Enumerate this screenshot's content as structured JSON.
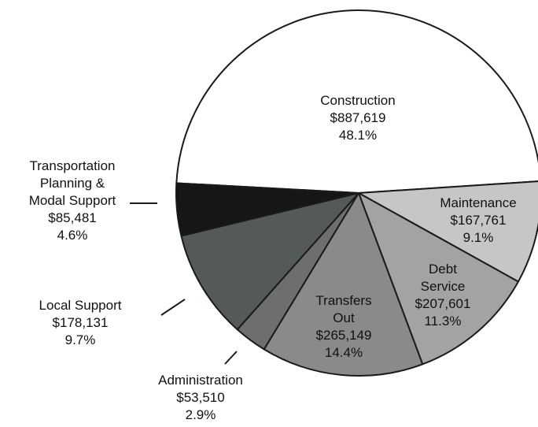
{
  "chart_data": {
    "type": "pie",
    "categories": [
      "Construction",
      "Maintenance",
      "Debt\nService",
      "Transfers\nOut",
      "Administration",
      "Local Support",
      "Transportation\nPlanning &\nModal Support"
    ],
    "values": [
      887619,
      167761,
      207601,
      265149,
      53510,
      178131,
      85481
    ],
    "value_labels": [
      "$887,619",
      "$167,761",
      "$207,601",
      "$265,149",
      "$53,510",
      "$178,131",
      "$85,481"
    ],
    "percents": [
      48.1,
      9.1,
      11.3,
      14.4,
      2.9,
      9.7,
      4.6
    ],
    "percent_labels": [
      "48.1%",
      "9.1%",
      "11.3%",
      "14.4%",
      "2.9%",
      "9.7%",
      "4.6%"
    ],
    "colors": [
      "#ffffff",
      "#c6c6c6",
      "#a3a3a3",
      "#8a8a8a",
      "#6e6e6e",
      "#545959",
      "#161616"
    ]
  }
}
